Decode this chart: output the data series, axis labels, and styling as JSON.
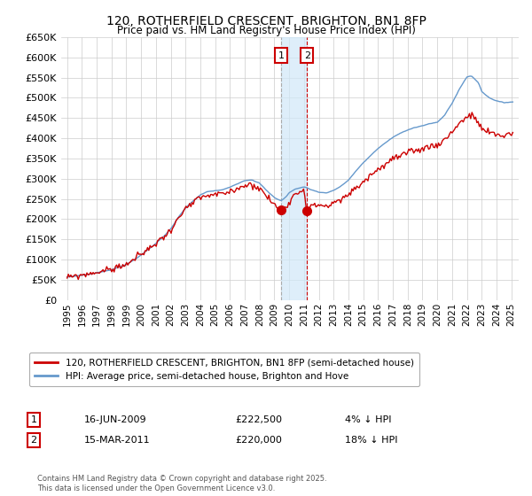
{
  "title": "120, ROTHERFIELD CRESCENT, BRIGHTON, BN1 8FP",
  "subtitle": "Price paid vs. HM Land Registry's House Price Index (HPI)",
  "legend_line1": "120, ROTHERFIELD CRESCENT, BRIGHTON, BN1 8FP (semi-detached house)",
  "legend_line2": "HPI: Average price, semi-detached house, Brighton and Hove",
  "footer": "Contains HM Land Registry data © Crown copyright and database right 2025.\nThis data is licensed under the Open Government Licence v3.0.",
  "transaction1": {
    "label": "1",
    "date": "16-JUN-2009",
    "price": "£222,500",
    "hpi_diff": "4% ↓ HPI",
    "year": 2009.46
  },
  "transaction2": {
    "label": "2",
    "date": "15-MAR-2011",
    "price": "£220,000",
    "hpi_diff": "18% ↓ HPI",
    "year": 2011.21
  },
  "t1_price": 222500,
  "t2_price": 220000,
  "ylim": [
    0,
    650000
  ],
  "yticks": [
    0,
    50000,
    100000,
    150000,
    200000,
    250000,
    300000,
    350000,
    400000,
    450000,
    500000,
    550000,
    600000,
    650000
  ],
  "xlim_start": 1994.6,
  "xlim_end": 2025.5,
  "red_color": "#cc0000",
  "blue_color": "#6699cc",
  "shade_color": "#d0e8f8",
  "background_color": "#ffffff",
  "grid_color": "#cccccc"
}
